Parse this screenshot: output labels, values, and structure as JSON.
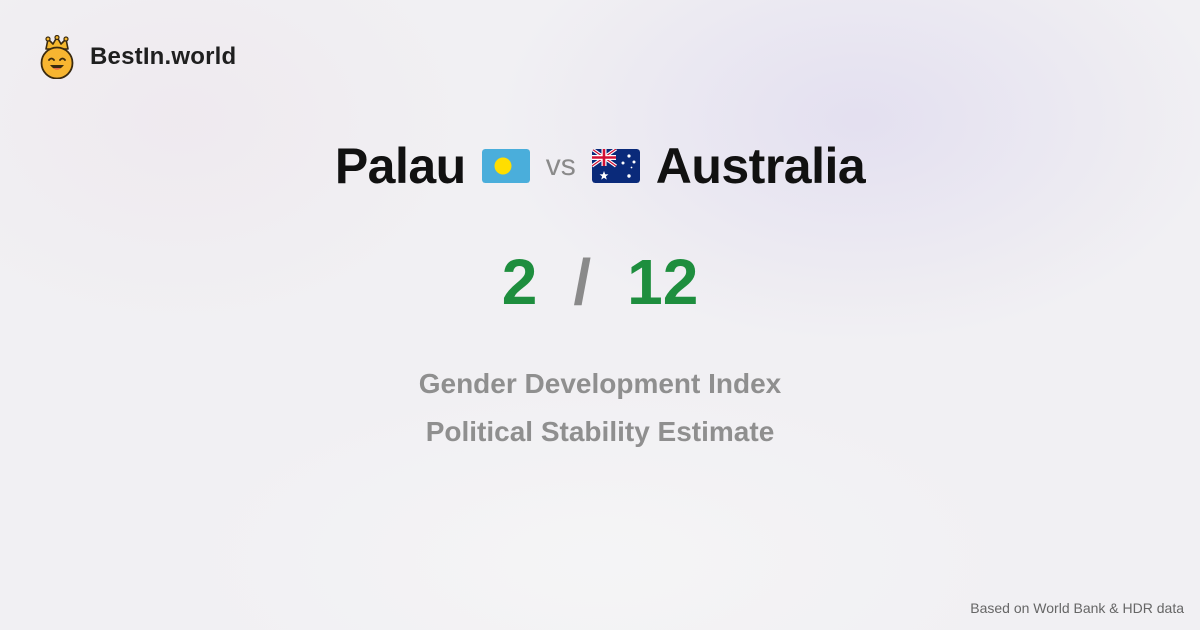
{
  "brand": {
    "name": "BestIn.world",
    "logo_icon": "crowned-smiley-icon"
  },
  "comparison": {
    "left_country": "Palau",
    "left_flag": "palau-flag-icon",
    "vs_label": "vs",
    "right_country": "Australia",
    "right_flag": "australia-flag-icon"
  },
  "scores": {
    "left": "2",
    "separator": "/",
    "right": "12",
    "color": "#1e8e3e"
  },
  "metrics": [
    "Gender Development Index",
    "Political Stability Estimate"
  ],
  "footnote": "Based on World Bank & HDR data"
}
